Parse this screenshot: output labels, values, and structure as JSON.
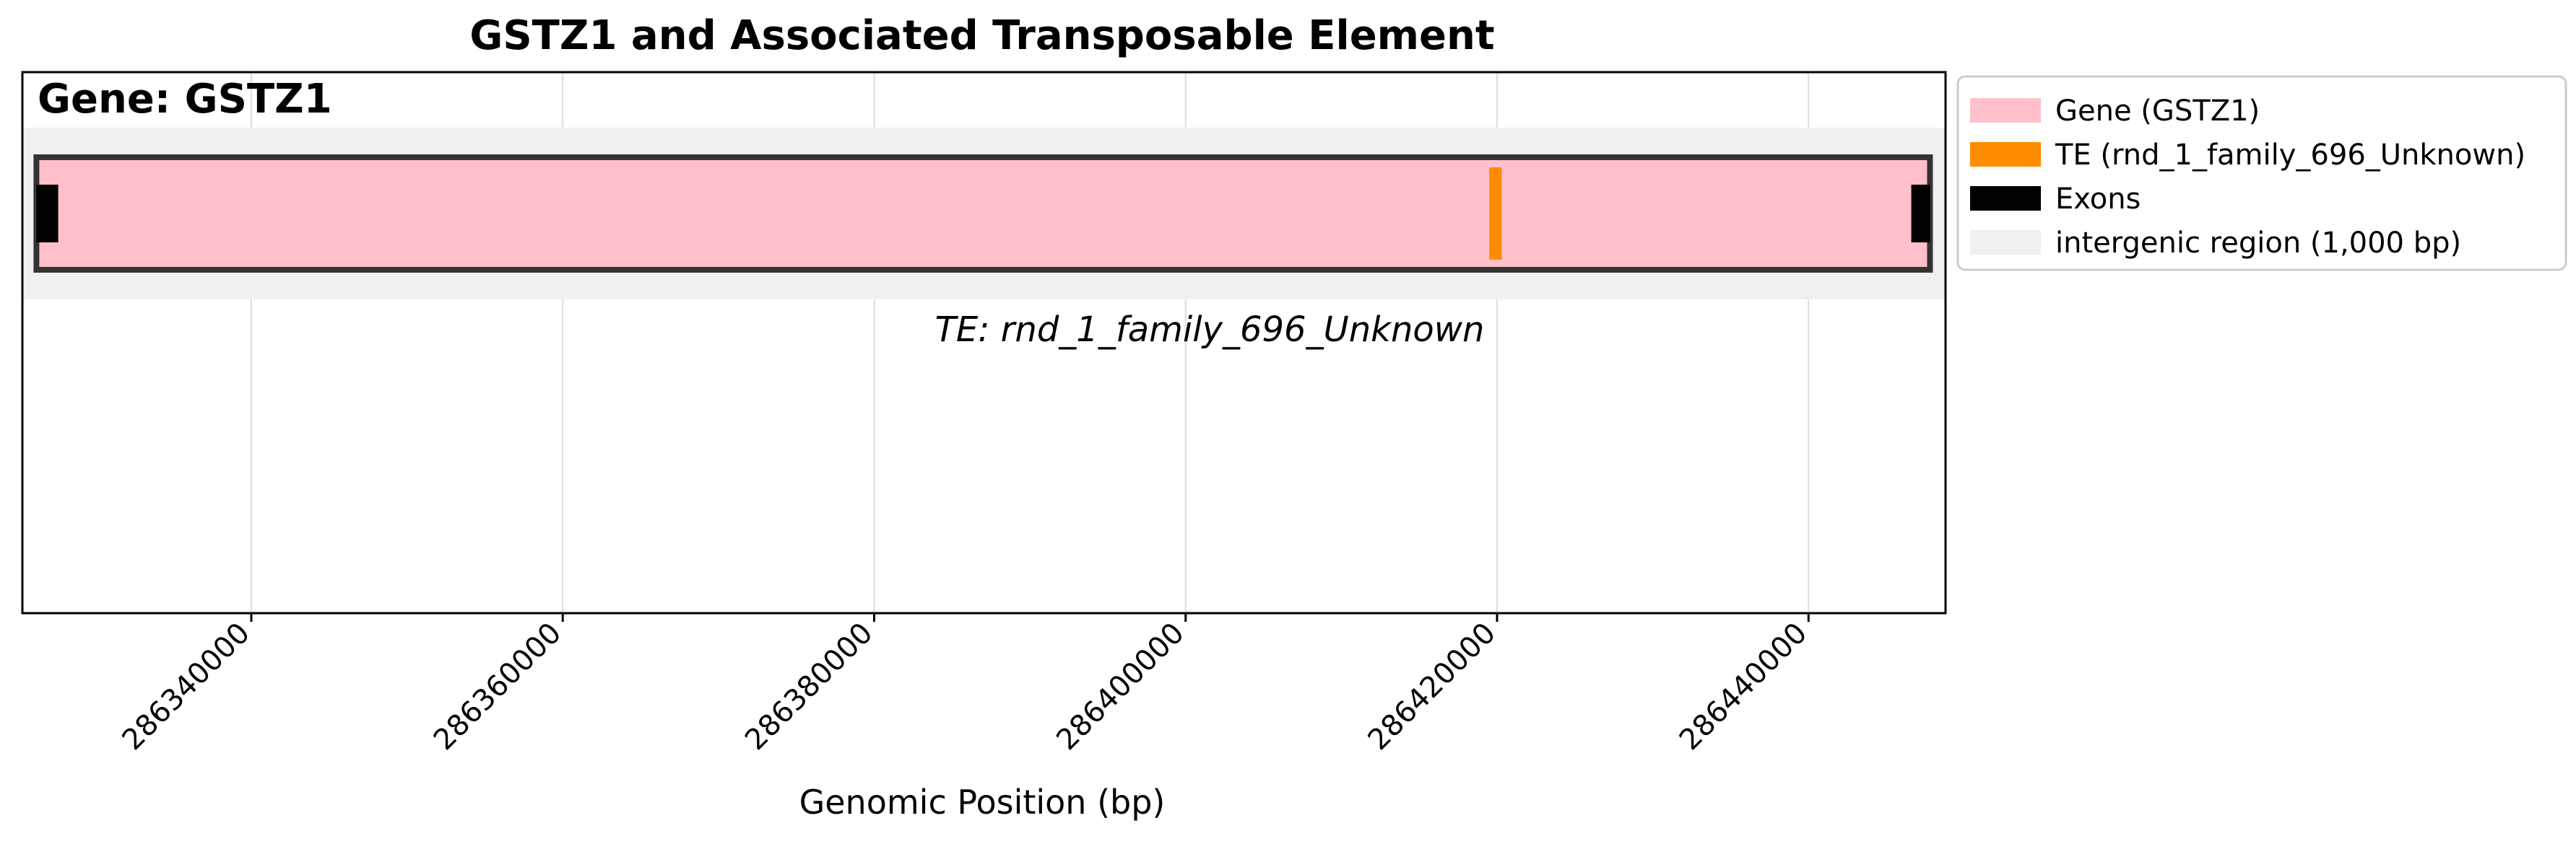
{
  "chart_data": {
    "type": "genome-track",
    "title": "GSTZ1 and Associated Transposable Element",
    "panel_title": "Gene: GSTZ1",
    "xlabel": "Genomic Position (bp)",
    "ylabel": "",
    "xlim": [
      286325300,
      286448800
    ],
    "xticks": [
      286340000,
      286360000,
      286380000,
      286400000,
      286420000,
      286440000
    ],
    "xtick_labels": [
      "286340000",
      "286360000",
      "286380000",
      "286400000",
      "286420000",
      "286440000"
    ],
    "grid": "vertical",
    "legend_position": "outside-top-right",
    "intergenic_region": {
      "start": 286325300,
      "end": 286448800
    },
    "gene": {
      "name": "GSTZ1",
      "start": 286326200,
      "end": 286447800
    },
    "exons": [
      {
        "start": 286326200,
        "end": 286327600
      },
      {
        "start": 286446600,
        "end": 286447800
      }
    ],
    "te": {
      "name": "rnd_1_family_696_Unknown",
      "start": 286419500,
      "end": 286420300
    },
    "te_label": "TE: rnd_1_family_696_Unknown",
    "legend": [
      {
        "label": "Gene (GSTZ1)",
        "color": "#FFC0CB"
      },
      {
        "label": "TE (rnd_1_family_696_Unknown)",
        "color": "#FF8C00"
      },
      {
        "label": "Exons",
        "color": "#000000"
      },
      {
        "label": "intergenic region (1,000 bp)",
        "color": "#F0F0F0"
      }
    ]
  },
  "colors": {
    "gene_fill": "#FFC0CB",
    "gene_edge": "#333333",
    "te": "#FF8C00",
    "exon": "#000000",
    "intergenic": "#F0F0F0",
    "grid": "#DDDDDD"
  }
}
